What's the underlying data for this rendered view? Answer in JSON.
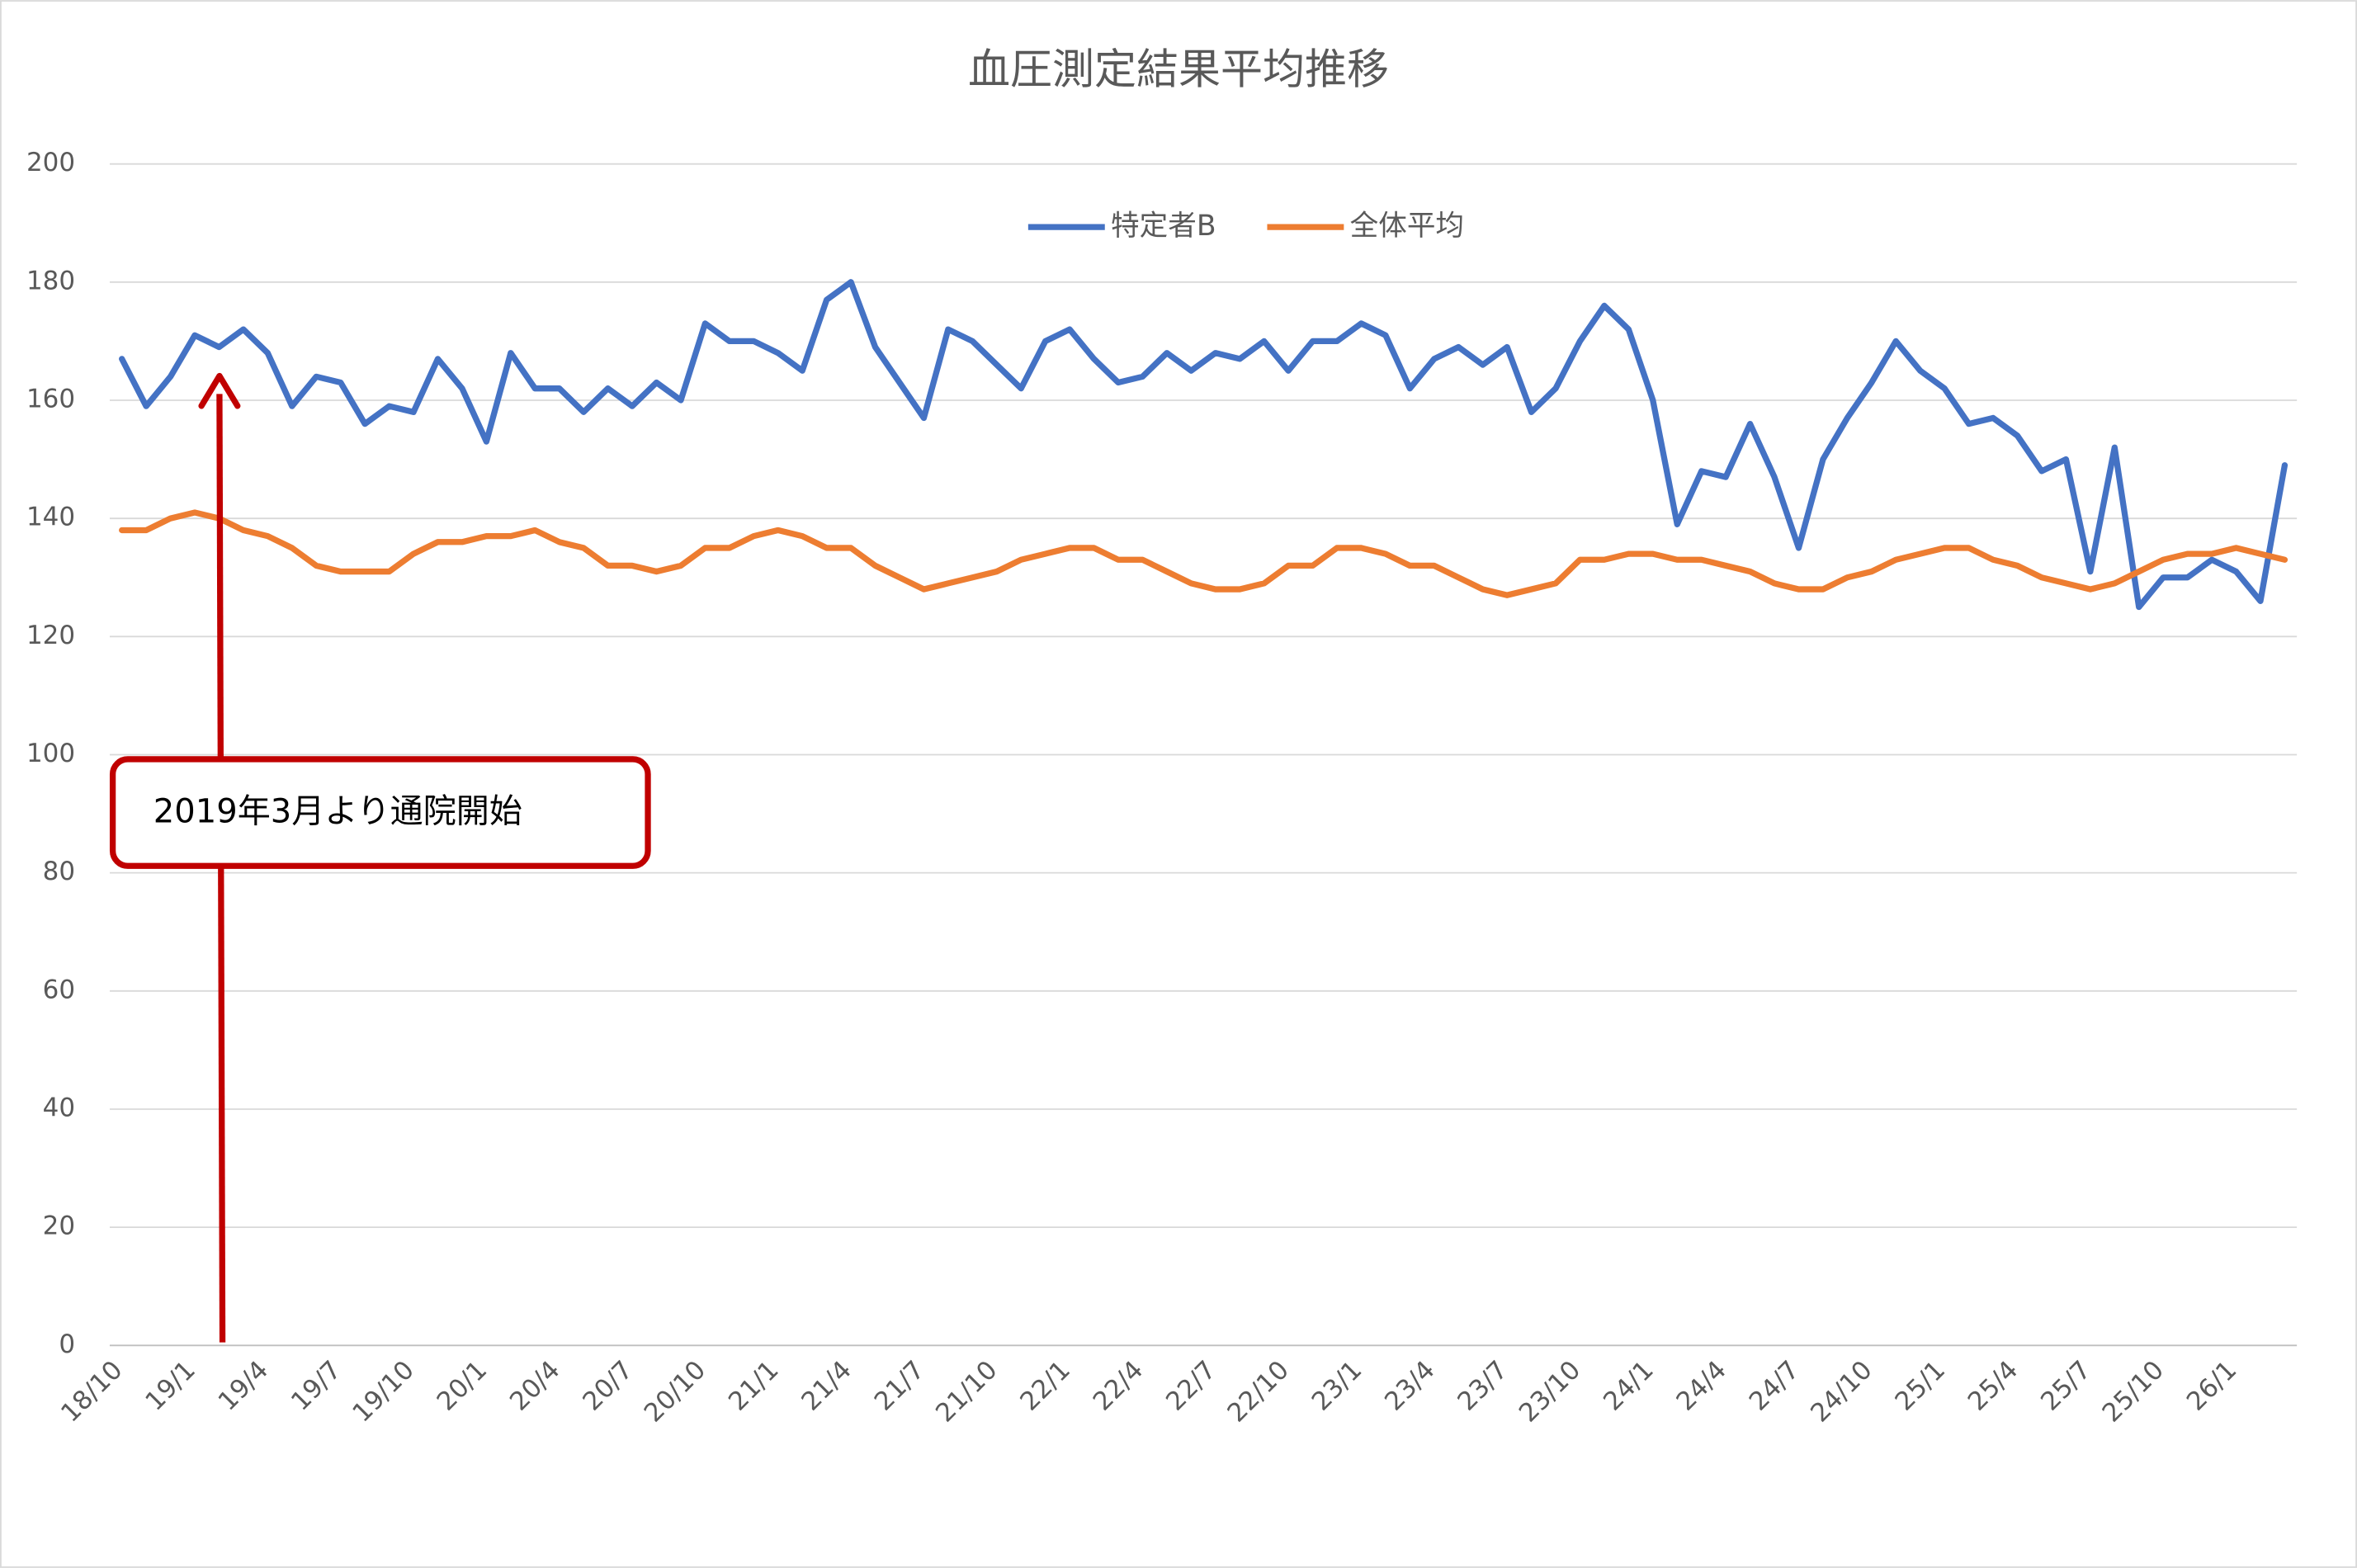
{
  "chart_data": {
    "type": "line",
    "title": "血圧測定結果平均推移",
    "categories": [
      "18/10",
      null,
      null,
      "19/1",
      null,
      null,
      "19/4",
      null,
      null,
      "19/7",
      null,
      null,
      "19/10",
      null,
      null,
      "20/1",
      null,
      null,
      "20/4",
      null,
      null,
      "20/7",
      null,
      null,
      "20/10",
      null,
      null,
      "21/1",
      null,
      null,
      "21/4",
      null,
      null,
      "21/7",
      null,
      null,
      "21/10",
      null,
      null,
      "22/1",
      null,
      null,
      "22/4",
      null,
      null,
      "22/7",
      null,
      null,
      "22/10",
      null,
      null,
      "23/1",
      null,
      null,
      "23/4",
      null,
      null,
      "23/7",
      null,
      null,
      "23/10",
      null,
      null,
      "24/1",
      null,
      null,
      "24/4",
      null,
      null,
      "24/7",
      null,
      null,
      "24/10",
      null,
      null,
      "25/1",
      null,
      null,
      "25/4",
      null,
      null,
      "25/7",
      null,
      null,
      "25/10",
      null,
      null,
      "26/1",
      null,
      null
    ],
    "series": [
      {
        "name": "特定者B",
        "color": "#4472c4",
        "values": [
          167,
          159,
          164,
          171,
          169,
          172,
          168,
          159,
          164,
          163,
          156,
          159,
          158,
          167,
          162,
          153,
          168,
          162,
          162,
          158,
          162,
          159,
          163,
          160,
          173,
          170,
          170,
          168,
          165,
          177,
          180,
          169,
          163,
          157,
          172,
          170,
          166,
          162,
          170,
          172,
          167,
          163,
          164,
          168,
          165,
          168,
          167,
          170,
          165,
          170,
          170,
          173,
          171,
          162,
          167,
          169,
          166,
          169,
          158,
          162,
          170,
          176,
          172,
          160,
          139,
          148,
          147,
          156,
          147,
          135,
          150,
          157,
          163,
          170,
          165,
          162,
          156,
          157,
          154,
          148,
          150,
          131,
          152,
          125,
          130,
          130,
          133,
          131,
          126,
          149
        ]
      },
      {
        "name": "全体平均",
        "color": "#ed7d31",
        "values": [
          138,
          138,
          140,
          141,
          140,
          138,
          137,
          135,
          132,
          131,
          131,
          131,
          134,
          136,
          136,
          137,
          137,
          138,
          136,
          135,
          132,
          132,
          131,
          132,
          135,
          135,
          137,
          138,
          137,
          135,
          135,
          132,
          130,
          128,
          129,
          130,
          131,
          133,
          134,
          135,
          135,
          133,
          133,
          131,
          129,
          128,
          128,
          129,
          132,
          132,
          135,
          135,
          134,
          132,
          132,
          130,
          128,
          127,
          128,
          129,
          133,
          133,
          134,
          134,
          133,
          133,
          132,
          131,
          129,
          128,
          128,
          130,
          131,
          133,
          134,
          135,
          135,
          133,
          132,
          130,
          129,
          128,
          129,
          131,
          133,
          134,
          134,
          135,
          134,
          133
        ]
      }
    ],
    "ylim": [
      0,
      200
    ],
    "yticks": [
      0,
      20,
      40,
      60,
      80,
      100,
      120,
      140,
      160,
      180,
      200
    ],
    "grid": true,
    "legend": "top",
    "annotation": {
      "text": "2019年3月より通院開始",
      "color": "#c00000"
    }
  }
}
